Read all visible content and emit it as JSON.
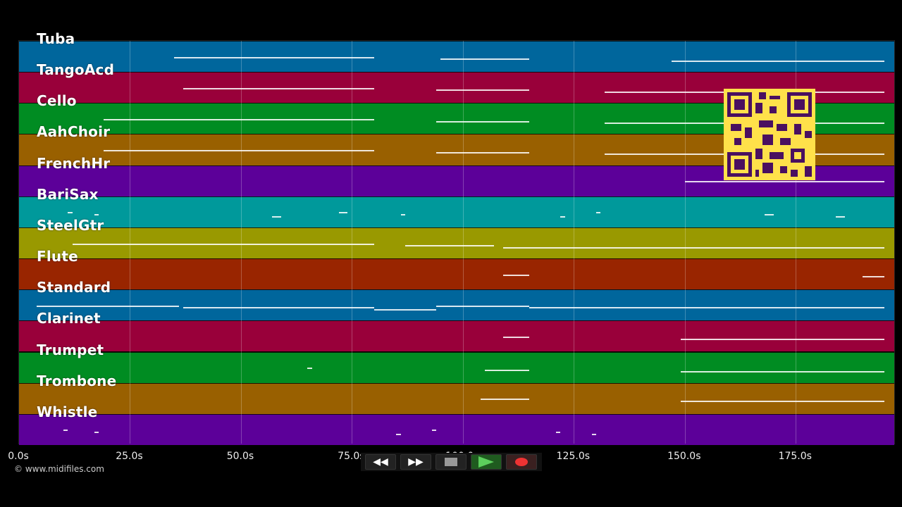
{
  "tracks": [
    {
      "name": "Tuba",
      "color": "#00669c"
    },
    {
      "name": "TangoAcd",
      "color": "#99003a"
    },
    {
      "name": "Cello",
      "color": "#008c22"
    },
    {
      "name": "AahChoir",
      "color": "#996000"
    },
    {
      "name": "FrenchHr",
      "color": "#5c0099"
    },
    {
      "name": "BariSax",
      "color": "#00999b"
    },
    {
      "name": "SteelGtr",
      "color": "#999900"
    },
    {
      "name": "Flute",
      "color": "#992500"
    },
    {
      "name": "Standard",
      "color": "#00669c"
    },
    {
      "name": "Clarinet",
      "color": "#99003a"
    },
    {
      "name": "Trumpet",
      "color": "#008c22"
    },
    {
      "name": "Trombone",
      "color": "#996000"
    },
    {
      "name": "Whistle",
      "color": "#5c0099"
    }
  ],
  "timeline": {
    "ticks": [
      "0.0s",
      "25.0s",
      "50.0s",
      "75.0s",
      "100.0s",
      "125.0s",
      "150.0s",
      "175.0s"
    ],
    "tick_values": [
      0,
      25,
      50,
      75,
      100,
      125,
      150,
      175
    ],
    "max_seconds": 197.5
  },
  "notes": [
    [
      [
        35,
        80
      ],
      [
        95,
        115
      ],
      [
        147,
        195
      ]
    ],
    [
      [
        37,
        80
      ],
      [
        94,
        115
      ],
      [
        132,
        195
      ]
    ],
    [
      [
        19,
        80
      ],
      [
        94,
        115
      ],
      [
        132,
        195
      ]
    ],
    [
      [
        19,
        80
      ],
      [
        94,
        115
      ],
      [
        132,
        195
      ]
    ],
    [
      [
        150,
        195
      ]
    ],
    [
      [
        11,
        12
      ],
      [
        17,
        18
      ],
      [
        57,
        59
      ],
      [
        72,
        74
      ],
      [
        86,
        87
      ],
      [
        122,
        123
      ],
      [
        130,
        131
      ],
      [
        168,
        170
      ],
      [
        184,
        186
      ]
    ],
    [
      [
        12,
        80
      ],
      [
        87,
        107
      ],
      [
        109,
        195
      ]
    ],
    [
      [
        109,
        115
      ],
      [
        190,
        195
      ]
    ],
    [
      [
        4,
        36
      ],
      [
        37,
        80
      ],
      [
        80,
        94
      ],
      [
        94,
        115
      ],
      [
        115,
        195
      ]
    ],
    [
      [
        109,
        115
      ],
      [
        149,
        195
      ]
    ],
    [
      [
        65,
        66
      ],
      [
        105,
        115
      ],
      [
        149,
        195
      ]
    ],
    [
      [
        104,
        115
      ],
      [
        149,
        195
      ]
    ],
    [
      [
        10,
        11
      ],
      [
        17,
        18
      ],
      [
        85,
        86
      ],
      [
        93,
        94
      ],
      [
        121,
        122
      ],
      [
        129,
        130
      ]
    ]
  ],
  "copyright": "© www.midifiles.com",
  "controls": {
    "rewind": "rewind-icon",
    "fast_forward": "fast-forward-icon",
    "stop": "stop-icon",
    "play": "play-icon",
    "record": "record-icon"
  }
}
